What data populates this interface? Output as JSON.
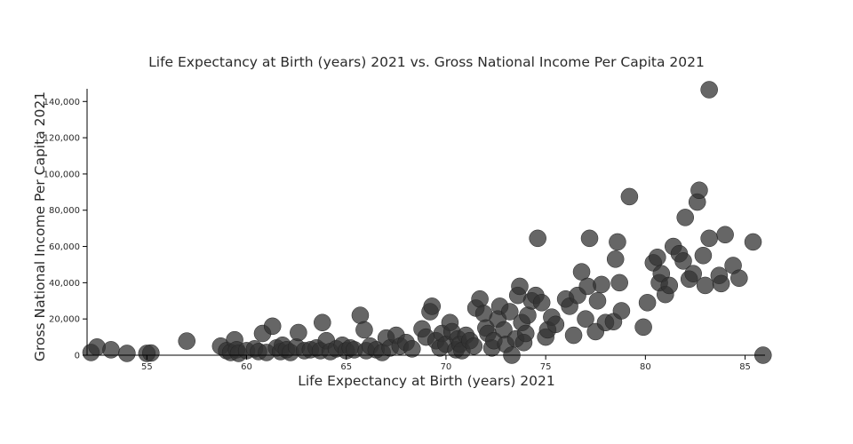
{
  "chart_data": {
    "type": "scatter",
    "title": "Life Expectancy at Birth (years) 2021 vs. Gross National Income Per Capita 2021",
    "xlabel": "Life Expectancy at Birth (years) 2021",
    "ylabel": "Gross National Income Per Capita 2021",
    "xlim": [
      52,
      86
    ],
    "ylim": [
      0,
      147000
    ],
    "x_ticks": [
      55,
      60,
      65,
      70,
      75,
      80,
      85
    ],
    "x_tick_labels": [
      "55",
      "60",
      "65",
      "70",
      "75",
      "80",
      "85"
    ],
    "y_ticks": [
      0,
      20000,
      40000,
      60000,
      80000,
      100000,
      120000,
      140000
    ],
    "y_tick_labels": [
      "0",
      "20,000",
      "40,000",
      "60,000",
      "80,000",
      "100,000",
      "120,000",
      "140,000"
    ],
    "marker_color": "#333333",
    "grid": false,
    "points": [
      {
        "x": 52.2,
        "y": 1500
      },
      {
        "x": 52.5,
        "y": 4500
      },
      {
        "x": 53.2,
        "y": 3000
      },
      {
        "x": 54.0,
        "y": 1000
      },
      {
        "x": 55.0,
        "y": 1000
      },
      {
        "x": 55.2,
        "y": 1200
      },
      {
        "x": 57.0,
        "y": 7800
      },
      {
        "x": 58.7,
        "y": 5000
      },
      {
        "x": 59.0,
        "y": 2500
      },
      {
        "x": 59.2,
        "y": 1500
      },
      {
        "x": 59.4,
        "y": 8500
      },
      {
        "x": 59.5,
        "y": 3000
      },
      {
        "x": 59.6,
        "y": 1000
      },
      {
        "x": 60.0,
        "y": 2500
      },
      {
        "x": 60.4,
        "y": 3500
      },
      {
        "x": 60.6,
        "y": 2000
      },
      {
        "x": 60.8,
        "y": 12000
      },
      {
        "x": 61.0,
        "y": 1500
      },
      {
        "x": 61.3,
        "y": 16000
      },
      {
        "x": 61.5,
        "y": 4000
      },
      {
        "x": 61.7,
        "y": 2000
      },
      {
        "x": 61.8,
        "y": 5500
      },
      {
        "x": 62.0,
        "y": 3000
      },
      {
        "x": 62.2,
        "y": 1500
      },
      {
        "x": 62.5,
        "y": 4500
      },
      {
        "x": 62.6,
        "y": 12500
      },
      {
        "x": 62.9,
        "y": 2500
      },
      {
        "x": 63.2,
        "y": 3000
      },
      {
        "x": 63.5,
        "y": 4000
      },
      {
        "x": 63.7,
        "y": 2500
      },
      {
        "x": 63.8,
        "y": 18000
      },
      {
        "x": 64.0,
        "y": 8000
      },
      {
        "x": 64.2,
        "y": 2000
      },
      {
        "x": 64.5,
        "y": 3500
      },
      {
        "x": 64.8,
        "y": 5500
      },
      {
        "x": 65.0,
        "y": 2500
      },
      {
        "x": 65.2,
        "y": 4000
      },
      {
        "x": 65.4,
        "y": 3000
      },
      {
        "x": 65.7,
        "y": 22000
      },
      {
        "x": 65.9,
        "y": 14000
      },
      {
        "x": 66.0,
        "y": 2500
      },
      {
        "x": 66.2,
        "y": 5000
      },
      {
        "x": 66.5,
        "y": 3000
      },
      {
        "x": 66.8,
        "y": 1500
      },
      {
        "x": 67.0,
        "y": 9500
      },
      {
        "x": 67.2,
        "y": 4000
      },
      {
        "x": 67.5,
        "y": 11000
      },
      {
        "x": 67.7,
        "y": 5000
      },
      {
        "x": 68.0,
        "y": 7000
      },
      {
        "x": 68.3,
        "y": 3500
      },
      {
        "x": 68.8,
        "y": 14500
      },
      {
        "x": 69.0,
        "y": 10000
      },
      {
        "x": 69.2,
        "y": 24000
      },
      {
        "x": 69.3,
        "y": 27000
      },
      {
        "x": 69.5,
        "y": 8000
      },
      {
        "x": 69.7,
        "y": 4000
      },
      {
        "x": 69.8,
        "y": 12000
      },
      {
        "x": 70.0,
        "y": 6000
      },
      {
        "x": 70.2,
        "y": 18000
      },
      {
        "x": 70.3,
        "y": 13000
      },
      {
        "x": 70.5,
        "y": 3000
      },
      {
        "x": 70.6,
        "y": 9000
      },
      {
        "x": 70.7,
        "y": 6000
      },
      {
        "x": 70.8,
        "y": 2500
      },
      {
        "x": 71.0,
        "y": 11000
      },
      {
        "x": 71.2,
        "y": 8000
      },
      {
        "x": 71.4,
        "y": 5000
      },
      {
        "x": 71.5,
        "y": 26000
      },
      {
        "x": 71.7,
        "y": 31000
      },
      {
        "x": 71.9,
        "y": 23000
      },
      {
        "x": 72.0,
        "y": 15000
      },
      {
        "x": 72.1,
        "y": 12000
      },
      {
        "x": 72.3,
        "y": 4000
      },
      {
        "x": 72.4,
        "y": 8000
      },
      {
        "x": 72.6,
        "y": 20000
      },
      {
        "x": 72.7,
        "y": 27000
      },
      {
        "x": 72.9,
        "y": 14000
      },
      {
        "x": 73.0,
        "y": 6000
      },
      {
        "x": 73.2,
        "y": 24000
      },
      {
        "x": 73.3,
        "y": 0
      },
      {
        "x": 73.5,
        "y": 9000
      },
      {
        "x": 73.6,
        "y": 33000
      },
      {
        "x": 73.7,
        "y": 38000
      },
      {
        "x": 73.8,
        "y": 18000
      },
      {
        "x": 73.9,
        "y": 7000
      },
      {
        "x": 74.0,
        "y": 12000
      },
      {
        "x": 74.1,
        "y": 22000
      },
      {
        "x": 74.3,
        "y": 30000
      },
      {
        "x": 74.5,
        "y": 33000
      },
      {
        "x": 74.6,
        "y": 64500
      },
      {
        "x": 74.8,
        "y": 29000
      },
      {
        "x": 75.0,
        "y": 10000
      },
      {
        "x": 75.1,
        "y": 14000
      },
      {
        "x": 75.3,
        "y": 21000
      },
      {
        "x": 75.5,
        "y": 17000
      },
      {
        "x": 76.0,
        "y": 31000
      },
      {
        "x": 76.2,
        "y": 27000
      },
      {
        "x": 76.4,
        "y": 11000
      },
      {
        "x": 76.6,
        "y": 33000
      },
      {
        "x": 76.8,
        "y": 46000
      },
      {
        "x": 77.0,
        "y": 20000
      },
      {
        "x": 77.1,
        "y": 38000
      },
      {
        "x": 77.2,
        "y": 64500
      },
      {
        "x": 77.5,
        "y": 13000
      },
      {
        "x": 77.6,
        "y": 30000
      },
      {
        "x": 77.8,
        "y": 39000
      },
      {
        "x": 78.0,
        "y": 18000
      },
      {
        "x": 78.4,
        "y": 18500
      },
      {
        "x": 78.5,
        "y": 53000
      },
      {
        "x": 78.6,
        "y": 62500
      },
      {
        "x": 78.7,
        "y": 40000
      },
      {
        "x": 78.8,
        "y": 24500
      },
      {
        "x": 79.2,
        "y": 87500
      },
      {
        "x": 79.9,
        "y": 15500
      },
      {
        "x": 80.1,
        "y": 29000
      },
      {
        "x": 80.4,
        "y": 51000
      },
      {
        "x": 80.6,
        "y": 54000
      },
      {
        "x": 80.7,
        "y": 40000
      },
      {
        "x": 80.8,
        "y": 45000
      },
      {
        "x": 81.0,
        "y": 33500
      },
      {
        "x": 81.2,
        "y": 38500
      },
      {
        "x": 81.4,
        "y": 60000
      },
      {
        "x": 81.7,
        "y": 56000
      },
      {
        "x": 81.9,
        "y": 52000
      },
      {
        "x": 82.0,
        "y": 76000
      },
      {
        "x": 82.2,
        "y": 42000
      },
      {
        "x": 82.4,
        "y": 45000
      },
      {
        "x": 82.6,
        "y": 84500
      },
      {
        "x": 82.7,
        "y": 91000
      },
      {
        "x": 82.9,
        "y": 55000
      },
      {
        "x": 83.0,
        "y": 38500
      },
      {
        "x": 83.2,
        "y": 64500
      },
      {
        "x": 83.2,
        "y": 146500
      },
      {
        "x": 83.7,
        "y": 44000
      },
      {
        "x": 83.8,
        "y": 39500
      },
      {
        "x": 84.0,
        "y": 66500
      },
      {
        "x": 84.4,
        "y": 49500
      },
      {
        "x": 84.7,
        "y": 42500
      },
      {
        "x": 85.4,
        "y": 62500
      },
      {
        "x": 85.9,
        "y": 0
      }
    ]
  }
}
